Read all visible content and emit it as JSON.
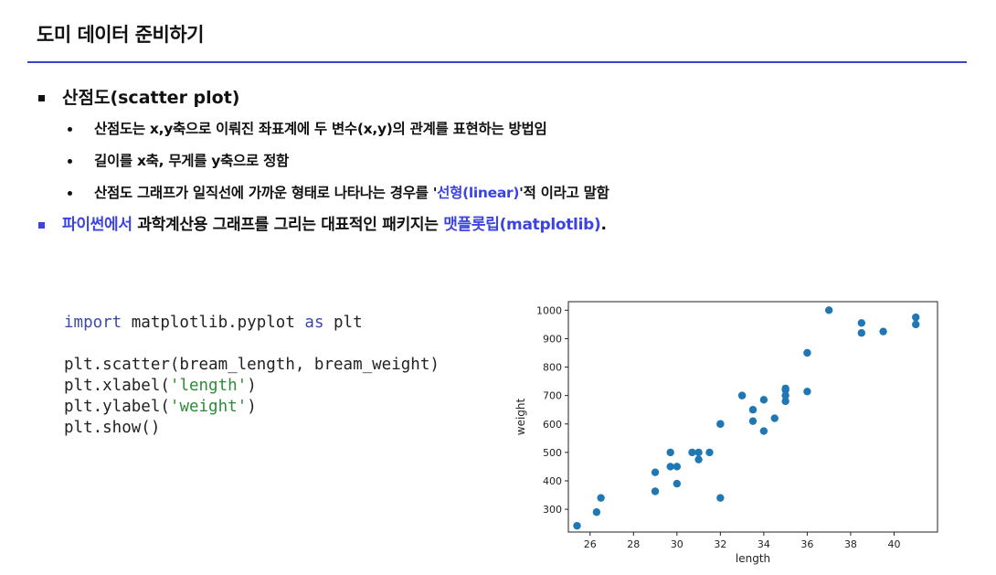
{
  "title": "도미 데이터 준비하기",
  "bullets": {
    "main": "산점도(scatter plot)",
    "sub1": "산점도는 x,y축으로 이뤄진 좌표계에 두 변수(x,y)의 관계를 표현하는 방법임",
    "sub2": "길이를 x축, 무게를 y축으로 정함",
    "sub3_pre": "산점도 그래프가 일직선에 가까운 형태로 나타나는 경우를 '",
    "sub3_hl": "선형(linear)",
    "sub3_post": "'적 이라고 말함",
    "py_hl": "파이썬에서",
    "py_mid": " 과학계산용 그래프를 그리는 대표적인 패키지는 ",
    "py_hl2": "맷플롯립(matplotlib)",
    "py_end": "."
  },
  "code": {
    "l1_kw": "import",
    "l1_mod": " matplotlib.pyplot ",
    "l1_as": "as",
    "l1_alias": " plt",
    "l2": "plt.scatter(bream_length, bream_weight)",
    "l3_pre": "plt.xlabel(",
    "l3_str": "'length'",
    "l3_post": ")",
    "l4_pre": "plt.ylabel(",
    "l4_str": "'weight'",
    "l4_post": ")",
    "l5": "plt.show()"
  },
  "colors": {
    "accent": "#3b43e0",
    "rule": "#3b43c4",
    "marker": "#1f77b4"
  },
  "chart_data": {
    "type": "scatter",
    "xlabel": "length",
    "ylabel": "weight",
    "xlim": [
      25,
      42
    ],
    "ylim": [
      220,
      1030
    ],
    "xticks": [
      26,
      28,
      30,
      32,
      34,
      36,
      38,
      40
    ],
    "yticks": [
      300,
      400,
      500,
      600,
      700,
      800,
      900,
      1000
    ],
    "grid": false,
    "x": [
      25.4,
      26.3,
      26.5,
      29.0,
      29.0,
      29.7,
      29.7,
      30.0,
      30.0,
      30.7,
      31.0,
      31.0,
      31.5,
      32.0,
      32.0,
      32.0,
      33.0,
      33.0,
      33.5,
      33.5,
      34.0,
      34.0,
      34.5,
      35.0,
      35.0,
      35.0,
      35.0,
      36.0,
      36.0,
      37.0,
      38.5,
      38.5,
      39.5,
      41.0,
      41.0
    ],
    "y": [
      242,
      290,
      340,
      363,
      430,
      450,
      500,
      390,
      450,
      500,
      475,
      500,
      500,
      340,
      600,
      600,
      700,
      700,
      610,
      650,
      575,
      685,
      620,
      680,
      700,
      725,
      720,
      714,
      850,
      1000,
      920,
      955,
      925,
      975,
      950
    ]
  }
}
